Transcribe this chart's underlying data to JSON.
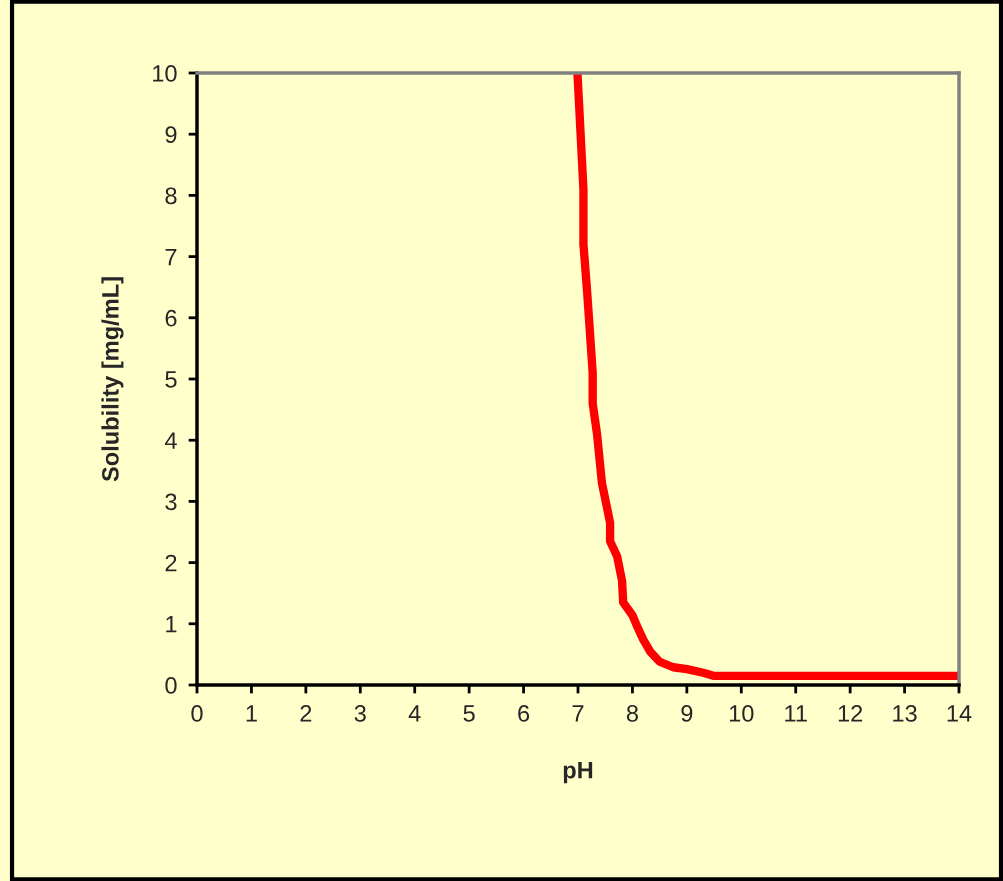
{
  "chart_data": {
    "type": "line",
    "xlabel": "pH",
    "ylabel": "Solubility [mg/mL]",
    "xlim": [
      0,
      14
    ],
    "xticks": [
      0,
      1,
      2,
      3,
      4,
      5,
      6,
      7,
      8,
      9,
      10,
      11,
      12,
      13,
      14
    ],
    "ylim": [
      0,
      10
    ],
    "yticks": [
      0,
      1,
      2,
      3,
      4,
      5,
      6,
      7,
      8,
      9,
      10
    ],
    "grid": false,
    "marker": "none",
    "line_style": "solid",
    "series": [
      {
        "color": "#ff0000",
        "x": [
          6.99,
          7.1,
          7.1,
          7.17,
          7.27,
          7.27,
          7.35,
          7.44,
          7.59,
          7.59,
          7.72,
          7.81,
          7.83,
          8.0,
          8.1,
          8.2,
          8.33,
          8.5,
          8.75,
          9.0,
          9.3,
          9.49,
          10,
          11,
          12,
          13,
          14
        ],
        "values": [
          10,
          8.1,
          7.2,
          6.4,
          5.1,
          4.6,
          4.1,
          3.3,
          2.65,
          2.35,
          2.1,
          1.7,
          1.35,
          1.14,
          0.93,
          0.74,
          0.54,
          0.38,
          0.29,
          0.26,
          0.2,
          0.15,
          0.15,
          0.15,
          0.15,
          0.15,
          0.15
        ]
      }
    ]
  }
}
